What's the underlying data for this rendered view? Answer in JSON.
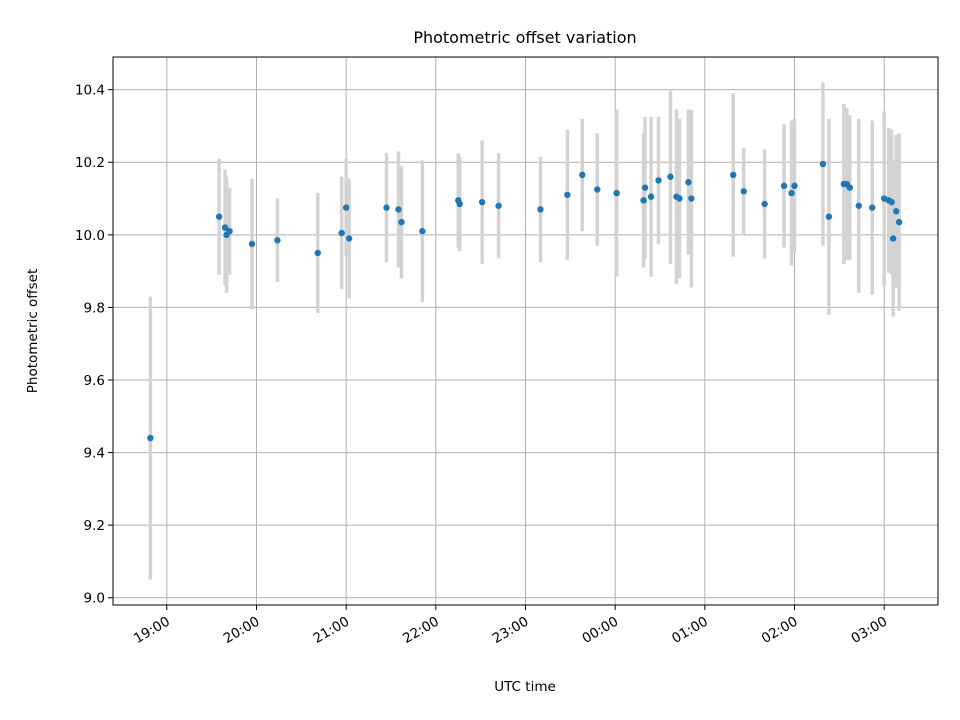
{
  "chart_data": {
    "type": "scatter",
    "title": "Photometric offset variation",
    "xlabel": "UTC time",
    "ylabel": "Photometric offset",
    "x_unit": "hours UTC",
    "x_ticks": [
      "19:00",
      "20:00",
      "21:00",
      "22:00",
      "23:00",
      "00:00",
      "01:00",
      "02:00",
      "03:00"
    ],
    "y_ticks": [
      "9.0",
      "9.2",
      "9.4",
      "9.6",
      "9.8",
      "10.0",
      "10.2",
      "10.4"
    ],
    "xlim": [
      "18:24",
      "03:36"
    ],
    "ylim": [
      8.98,
      10.49
    ],
    "grid": true,
    "colors": {
      "point": "#1f77b4",
      "errorbar": "#d3d3d3",
      "grid": "#b0b0b0"
    },
    "points": [
      {
        "t": "18:49",
        "y": 9.44,
        "err": 0.39
      },
      {
        "t": "19:35",
        "y": 10.05,
        "err": 0.16
      },
      {
        "t": "19:39",
        "y": 10.02,
        "err": 0.16
      },
      {
        "t": "19:40",
        "y": 10.0,
        "err": 0.16
      },
      {
        "t": "19:42",
        "y": 10.01,
        "err": 0.12
      },
      {
        "t": "19:57",
        "y": 9.975,
        "err": 0.18
      },
      {
        "t": "20:14",
        "y": 9.985,
        "err": 0.115
      },
      {
        "t": "20:41",
        "y": 9.95,
        "err": 0.165
      },
      {
        "t": "20:57",
        "y": 10.005,
        "err": 0.155
      },
      {
        "t": "21:00",
        "y": 10.075,
        "err": 0.135
      },
      {
        "t": "21:02",
        "y": 9.99,
        "err": 0.165
      },
      {
        "t": "21:27",
        "y": 10.075,
        "err": 0.15
      },
      {
        "t": "21:35",
        "y": 10.07,
        "err": 0.16
      },
      {
        "t": "21:37",
        "y": 10.035,
        "err": 0.155
      },
      {
        "t": "21:51",
        "y": 10.01,
        "err": 0.195
      },
      {
        "t": "22:15",
        "y": 10.095,
        "err": 0.13
      },
      {
        "t": "22:16",
        "y": 10.085,
        "err": 0.13
      },
      {
        "t": "22:31",
        "y": 10.09,
        "err": 0.17
      },
      {
        "t": "22:42",
        "y": 10.08,
        "err": 0.145
      },
      {
        "t": "23:10",
        "y": 10.07,
        "err": 0.145
      },
      {
        "t": "23:28",
        "y": 10.11,
        "err": 0.18
      },
      {
        "t": "23:38",
        "y": 10.165,
        "err": 0.155
      },
      {
        "t": "23:48",
        "y": 10.125,
        "err": 0.155
      },
      {
        "t": "00:01",
        "y": 10.115,
        "err": 0.23
      },
      {
        "t": "00:19",
        "y": 10.095,
        "err": 0.185
      },
      {
        "t": "00:20",
        "y": 10.13,
        "err": 0.195
      },
      {
        "t": "00:24",
        "y": 10.105,
        "err": 0.22
      },
      {
        "t": "00:29",
        "y": 10.15,
        "err": 0.175
      },
      {
        "t": "00:37",
        "y": 10.16,
        "err": 0.24
      },
      {
        "t": "00:41",
        "y": 10.105,
        "err": 0.24
      },
      {
        "t": "00:43",
        "y": 10.1,
        "err": 0.22
      },
      {
        "t": "00:49",
        "y": 10.145,
        "err": 0.2
      },
      {
        "t": "00:51",
        "y": 10.1,
        "err": 0.245
      },
      {
        "t": "01:19",
        "y": 10.165,
        "err": 0.225
      },
      {
        "t": "01:26",
        "y": 10.12,
        "err": 0.12
      },
      {
        "t": "01:40",
        "y": 10.085,
        "err": 0.15
      },
      {
        "t": "01:53",
        "y": 10.135,
        "err": 0.17
      },
      {
        "t": "01:58",
        "y": 10.115,
        "err": 0.2
      },
      {
        "t": "02:00",
        "y": 10.135,
        "err": 0.185
      },
      {
        "t": "02:19",
        "y": 10.195,
        "err": 0.225
      },
      {
        "t": "02:23",
        "y": 10.05,
        "err": 0.27
      },
      {
        "t": "02:33",
        "y": 10.14,
        "err": 0.22
      },
      {
        "t": "02:35",
        "y": 10.14,
        "err": 0.21
      },
      {
        "t": "02:37",
        "y": 10.13,
        "err": 0.2
      },
      {
        "t": "02:43",
        "y": 10.08,
        "err": 0.24
      },
      {
        "t": "02:52",
        "y": 10.075,
        "err": 0.24
      },
      {
        "t": "03:00",
        "y": 10.1,
        "err": 0.24
      },
      {
        "t": "03:03",
        "y": 10.095,
        "err": 0.2
      },
      {
        "t": "03:05",
        "y": 10.09,
        "err": 0.2
      },
      {
        "t": "03:06",
        "y": 9.99,
        "err": 0.215
      },
      {
        "t": "03:08",
        "y": 10.065,
        "err": 0.21
      },
      {
        "t": "03:10",
        "y": 10.035,
        "err": 0.245
      }
    ]
  }
}
